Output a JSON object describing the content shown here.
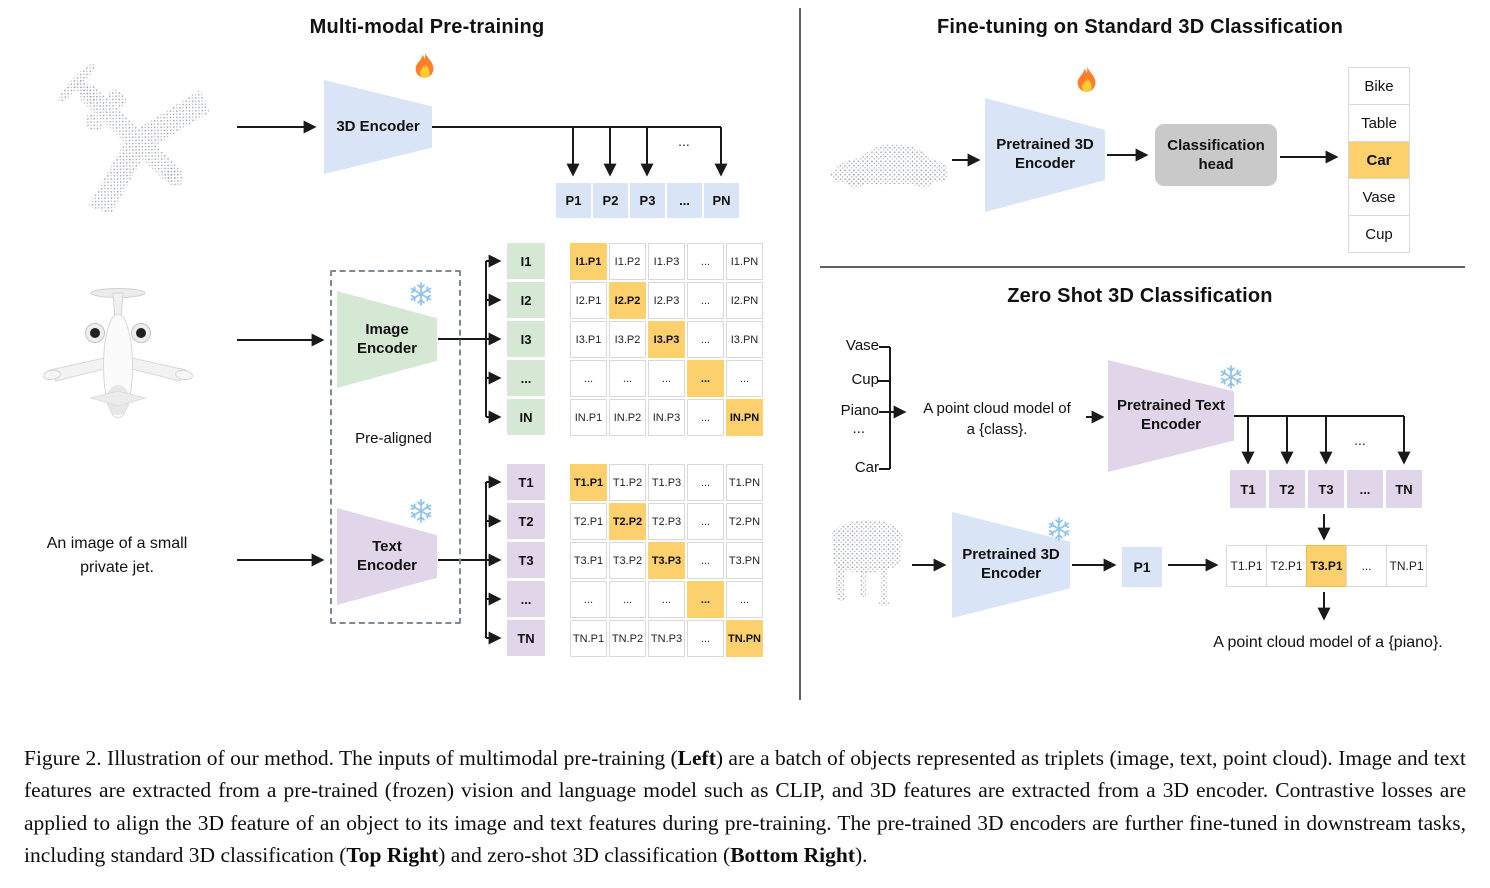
{
  "pretraining": {
    "title": "Multi-modal Pre-training",
    "encoder3d_label": "3D Encoder",
    "p_row": {
      "items": [
        "P1",
        "P2",
        "P3",
        "...",
        "PN"
      ]
    },
    "branch_ellipsis": "...",
    "image_encoder_label": "Image\nEncoder",
    "text_encoder_label": "Text\nEncoder",
    "prealigned_label": "Pre-aligned",
    "input_caption": "An image of a small private jet.",
    "i_labels": {
      "items": [
        "I1",
        "I2",
        "I3",
        "...",
        "IN"
      ]
    },
    "t_labels": {
      "items": [
        "T1",
        "T2",
        "T3",
        "...",
        "TN"
      ]
    },
    "i_matrix": {
      "highlight": "diagonal",
      "rows": [
        [
          "I1.P1",
          "I1.P2",
          "I1.P3",
          "...",
          "I1.PN"
        ],
        [
          "I2.P1",
          "I2.P2",
          "I2.P3",
          "...",
          "I2.PN"
        ],
        [
          "I3.P1",
          "I3.P2",
          "I3.P3",
          "...",
          "I3.PN"
        ],
        [
          "...",
          "...",
          "...",
          "...",
          "..."
        ],
        [
          "IN.P1",
          "IN.P2",
          "IN.P3",
          "...",
          "IN.PN"
        ]
      ]
    },
    "t_matrix": {
      "highlight": "diagonal",
      "rows": [
        [
          "T1.P1",
          "T1.P2",
          "T1.P3",
          "...",
          "T1.PN"
        ],
        [
          "T2.P1",
          "T2.P2",
          "T2.P3",
          "...",
          "T2.PN"
        ],
        [
          "T3.P1",
          "T3.P2",
          "T3.P3",
          "...",
          "T3.PN"
        ],
        [
          "...",
          "...",
          "...",
          "...",
          "..."
        ],
        [
          "TN.P1",
          "TN.P2",
          "TN.P3",
          "...",
          "TN.PN"
        ]
      ]
    }
  },
  "finetune": {
    "title": "Fine-tuning on Standard 3D Classification",
    "encoder_label": "Pretrained 3D\nEncoder",
    "head_label": "Classification\nhead",
    "classes": {
      "items": [
        "Bike",
        "Table",
        "Car",
        "Vase",
        "Cup"
      ],
      "highlight_index": 2
    }
  },
  "zeroshot": {
    "title": "Zero Shot 3D Classification",
    "candidates": {
      "items": [
        "Vase",
        "Cup",
        "Piano",
        "...",
        "Car"
      ]
    },
    "prompt": "A point cloud model of\na {class}.",
    "text_encoder_label": "Pretrained Text\nEncoder",
    "t_row": {
      "items": [
        "T1",
        "T2",
        "T3",
        "...",
        "TN"
      ]
    },
    "branch_ellipsis": "...",
    "encoder3d_label": "Pretrained 3D\nEncoder",
    "p_cell": "P1",
    "similarity_row": {
      "items": [
        "T1.P1",
        "T2.P1",
        "T3.P1",
        "...",
        "TN.P1"
      ],
      "highlight_index": 2
    },
    "result_text": "A point cloud model of a {piano}."
  },
  "icons": {
    "fire": "fire-icon (trainable encoder)",
    "snowflake": "snowflake-icon (frozen encoder)"
  },
  "colors": {
    "encoder_blue": "#d9e4f7",
    "image_green": "#d5e8d4",
    "text_purple": "#e1d5e9",
    "highlight_orange": "#fbd06d",
    "head_gray": "#c9c9c9",
    "cell_border": "#d9d9d9"
  },
  "caption": {
    "segments": [
      {
        "text": "Figure 2. Illustration of our method. The inputs of multimodal pre-training (",
        "bold": false
      },
      {
        "text": "Left",
        "bold": true
      },
      {
        "text": ") are a batch of objects represented as triplets (image, text, point cloud). Image and text features are extracted from a pre-trained (frozen) vision and language model such as CLIP, and 3D features are extracted from a 3D encoder. Contrastive losses are applied to align the 3D feature of an object to its image and text features during pre-training. The pre-trained 3D encoders are further fine-tuned in downstream tasks, including standard 3D classification (",
        "bold": false
      },
      {
        "text": "Top Right",
        "bold": true
      },
      {
        "text": ") and zero-shot 3D classification (",
        "bold": false
      },
      {
        "text": "Bottom Right",
        "bold": true
      },
      {
        "text": ").",
        "bold": false
      }
    ]
  }
}
